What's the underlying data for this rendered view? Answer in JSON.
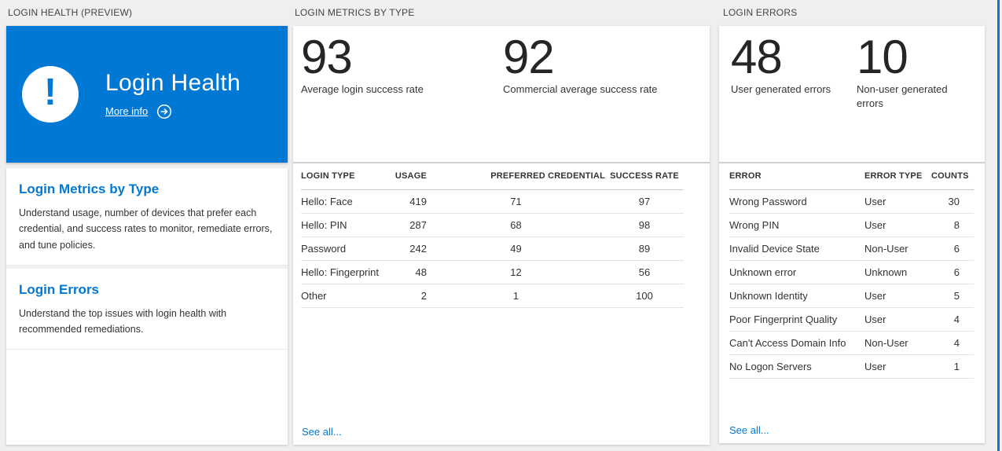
{
  "colors": {
    "accent": "#0078d4",
    "tile_background": "#0078d4",
    "big_number_text": "#252525",
    "page_background": "#efefef",
    "adjacent_panel_edge": "#1d6fb8"
  },
  "left_panel": {
    "section_label": "LOGIN HEALTH (PREVIEW)",
    "tile": {
      "title": "Login Health",
      "more_info_label": "More info",
      "icon": "exclamation-icon",
      "arrow_icon": "arrow-right-circle-icon"
    },
    "sections": [
      {
        "heading": "Login Metrics by Type",
        "body": "Understand usage, number of devices that prefer each credential, and success rates to monitor, remediate errors, and tune policies."
      },
      {
        "heading": "Login Errors",
        "body": "Understand the top issues with login health with recommended remediations."
      }
    ]
  },
  "metrics_panel": {
    "section_label": "LOGIN METRICS BY TYPE",
    "stats": [
      {
        "value": "93",
        "caption": "Average login success rate"
      },
      {
        "value": "92",
        "caption": "Commercial average success rate"
      }
    ],
    "table": {
      "headers": [
        "LOGIN TYPE",
        "USAGE",
        "PREFERRED CREDENTIAL",
        "SUCCESS RATE"
      ],
      "rows": [
        [
          "Hello: Face",
          "419",
          "71",
          "97"
        ],
        [
          "Hello: PIN",
          "287",
          "68",
          "98"
        ],
        [
          "Password",
          "242",
          "49",
          "89"
        ],
        [
          "Hello: Fingerprint",
          "48",
          "12",
          "56"
        ],
        [
          "Other",
          "2",
          "1",
          "100"
        ]
      ]
    },
    "see_all_label": "See all..."
  },
  "errors_panel": {
    "section_label": "LOGIN ERRORS",
    "stats": [
      {
        "value": "48",
        "caption": "User generated errors"
      },
      {
        "value": "10",
        "caption": "Non-user generated errors"
      }
    ],
    "table": {
      "headers": [
        "ERROR",
        "ERROR TYPE",
        "COUNTS"
      ],
      "rows": [
        [
          "Wrong Password",
          "User",
          "30"
        ],
        [
          "Wrong PIN",
          "User",
          "8"
        ],
        [
          "Invalid Device State",
          "Non-User",
          "6"
        ],
        [
          "Unknown error",
          "Unknown",
          "6"
        ],
        [
          "Unknown Identity",
          "User",
          "5"
        ],
        [
          "Poor Fingerprint Quality",
          "User",
          "4"
        ],
        [
          "Can't Access Domain Info",
          "Non-User",
          "4"
        ],
        [
          "No Logon Servers",
          "User",
          "1"
        ]
      ]
    },
    "see_all_label": "See all..."
  }
}
